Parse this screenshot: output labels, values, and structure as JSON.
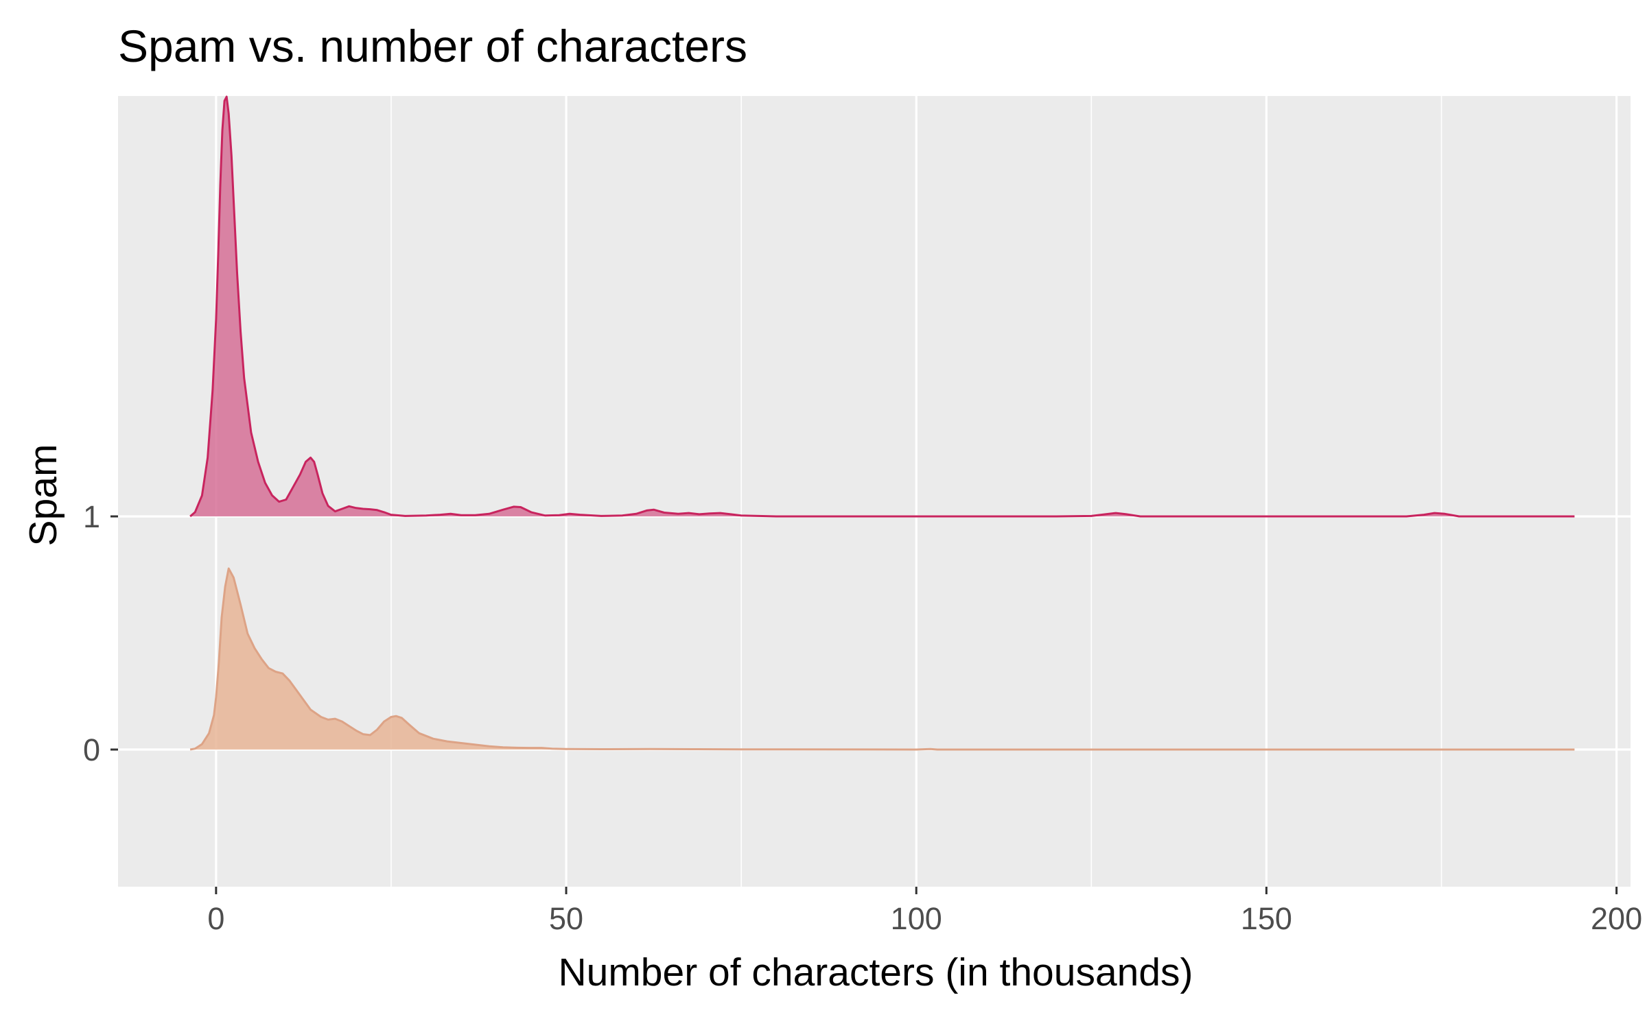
{
  "chart_data": {
    "type": "area",
    "subtype": "ridgeline-density",
    "title": "Spam vs. number of characters",
    "xlabel": "Number of characters (in thousands)",
    "ylabel": "Spam",
    "xlim": [
      -14,
      202
    ],
    "x_ticks": [
      0,
      50,
      100,
      150,
      200
    ],
    "x_tick_labels": [
      "0",
      "50",
      "100",
      "150",
      "200"
    ],
    "categories": [
      "0",
      "1"
    ],
    "y_tick_labels": [
      "0",
      "1"
    ],
    "grid": true,
    "panel_background": "#EBEBEB",
    "gridline_color": "#FFFFFF",
    "series": [
      {
        "category": "1",
        "color_fill": "#D46A93",
        "color_line": "#C8245E",
        "opacity": 0.82,
        "x": [
          -3.7,
          -3.0,
          -2.0,
          -1.2,
          -0.5,
          0.0,
          0.3,
          0.6,
          0.9,
          1.2,
          1.5,
          1.8,
          2.2,
          2.6,
          3.0,
          3.5,
          4.0,
          5.0,
          6.0,
          7.0,
          8.0,
          9.0,
          10.0,
          11.0,
          12.0,
          12.8,
          13.5,
          14.0,
          14.5,
          15.2,
          16.0,
          17.0,
          18.0,
          19.0,
          20.0,
          21.0,
          22.0,
          23.0,
          24.0,
          25.0,
          27.0,
          30.0,
          32.0,
          33.5,
          35.0,
          37.0,
          39.0,
          41.0,
          42.5,
          43.5,
          45.0,
          47.0,
          49.0,
          50.5,
          52.0,
          55.0,
          58.0,
          60.0,
          61.5,
          62.5,
          64.0,
          66.0,
          67.5,
          69.0,
          70.5,
          72.0,
          73.5,
          75.0,
          80.0,
          100.0,
          120.0,
          125.0,
          127.0,
          128.5,
          130.0,
          132.0,
          150.0,
          170.0,
          172.5,
          174.0,
          175.5,
          177.5,
          185.0,
          194.0
        ],
        "density": [
          0.0,
          0.01,
          0.05,
          0.14,
          0.3,
          0.47,
          0.62,
          0.79,
          0.92,
          0.99,
          1.0,
          0.96,
          0.86,
          0.72,
          0.58,
          0.44,
          0.33,
          0.2,
          0.13,
          0.08,
          0.05,
          0.035,
          0.04,
          0.07,
          0.1,
          0.13,
          0.14,
          0.13,
          0.1,
          0.055,
          0.025,
          0.012,
          0.018,
          0.024,
          0.02,
          0.018,
          0.017,
          0.015,
          0.01,
          0.004,
          0.001,
          0.002,
          0.004,
          0.006,
          0.003,
          0.003,
          0.006,
          0.016,
          0.023,
          0.022,
          0.01,
          0.002,
          0.003,
          0.006,
          0.004,
          0.001,
          0.002,
          0.006,
          0.014,
          0.016,
          0.009,
          0.006,
          0.008,
          0.005,
          0.007,
          0.008,
          0.005,
          0.002,
          0.0,
          0.0,
          0.0,
          0.001,
          0.005,
          0.008,
          0.005,
          0.0,
          0.0,
          0.0,
          0.004,
          0.008,
          0.006,
          0.0,
          0.0,
          0.0
        ]
      },
      {
        "category": "0",
        "color_fill": "#E8B597",
        "color_line": "#DDA386",
        "opacity": 0.85,
        "x": [
          -3.7,
          -3.0,
          -2.0,
          -1.0,
          -0.3,
          0.0,
          0.4,
          0.8,
          1.3,
          1.8,
          2.5,
          3.5,
          4.5,
          5.5,
          6.5,
          7.5,
          8.5,
          9.5,
          10.5,
          12.0,
          13.5,
          15.0,
          16.0,
          17.0,
          18.0,
          19.0,
          20.0,
          21.0,
          22.0,
          23.0,
          24.0,
          25.0,
          25.7,
          26.5,
          27.5,
          29.0,
          31.0,
          33.0,
          35.0,
          37.0,
          39.0,
          41.0,
          43.0,
          45.0,
          46.5,
          48.0,
          50.0,
          55.0,
          62.0,
          68.0,
          75.0,
          100.0,
          102.0,
          103.0,
          120.0,
          150.0,
          194.0
        ],
        "density": [
          0.0,
          0.005,
          0.03,
          0.09,
          0.19,
          0.29,
          0.48,
          0.73,
          0.9,
          1.0,
          0.95,
          0.8,
          0.64,
          0.56,
          0.5,
          0.45,
          0.43,
          0.42,
          0.38,
          0.3,
          0.22,
          0.18,
          0.165,
          0.17,
          0.155,
          0.13,
          0.105,
          0.085,
          0.08,
          0.11,
          0.155,
          0.18,
          0.185,
          0.175,
          0.14,
          0.09,
          0.06,
          0.045,
          0.036,
          0.027,
          0.018,
          0.012,
          0.01,
          0.009,
          0.009,
          0.005,
          0.003,
          0.002,
          0.003,
          0.002,
          0.001,
          0.0,
          0.003,
          0.0,
          0.0,
          0.0,
          0.0
        ]
      }
    ]
  }
}
